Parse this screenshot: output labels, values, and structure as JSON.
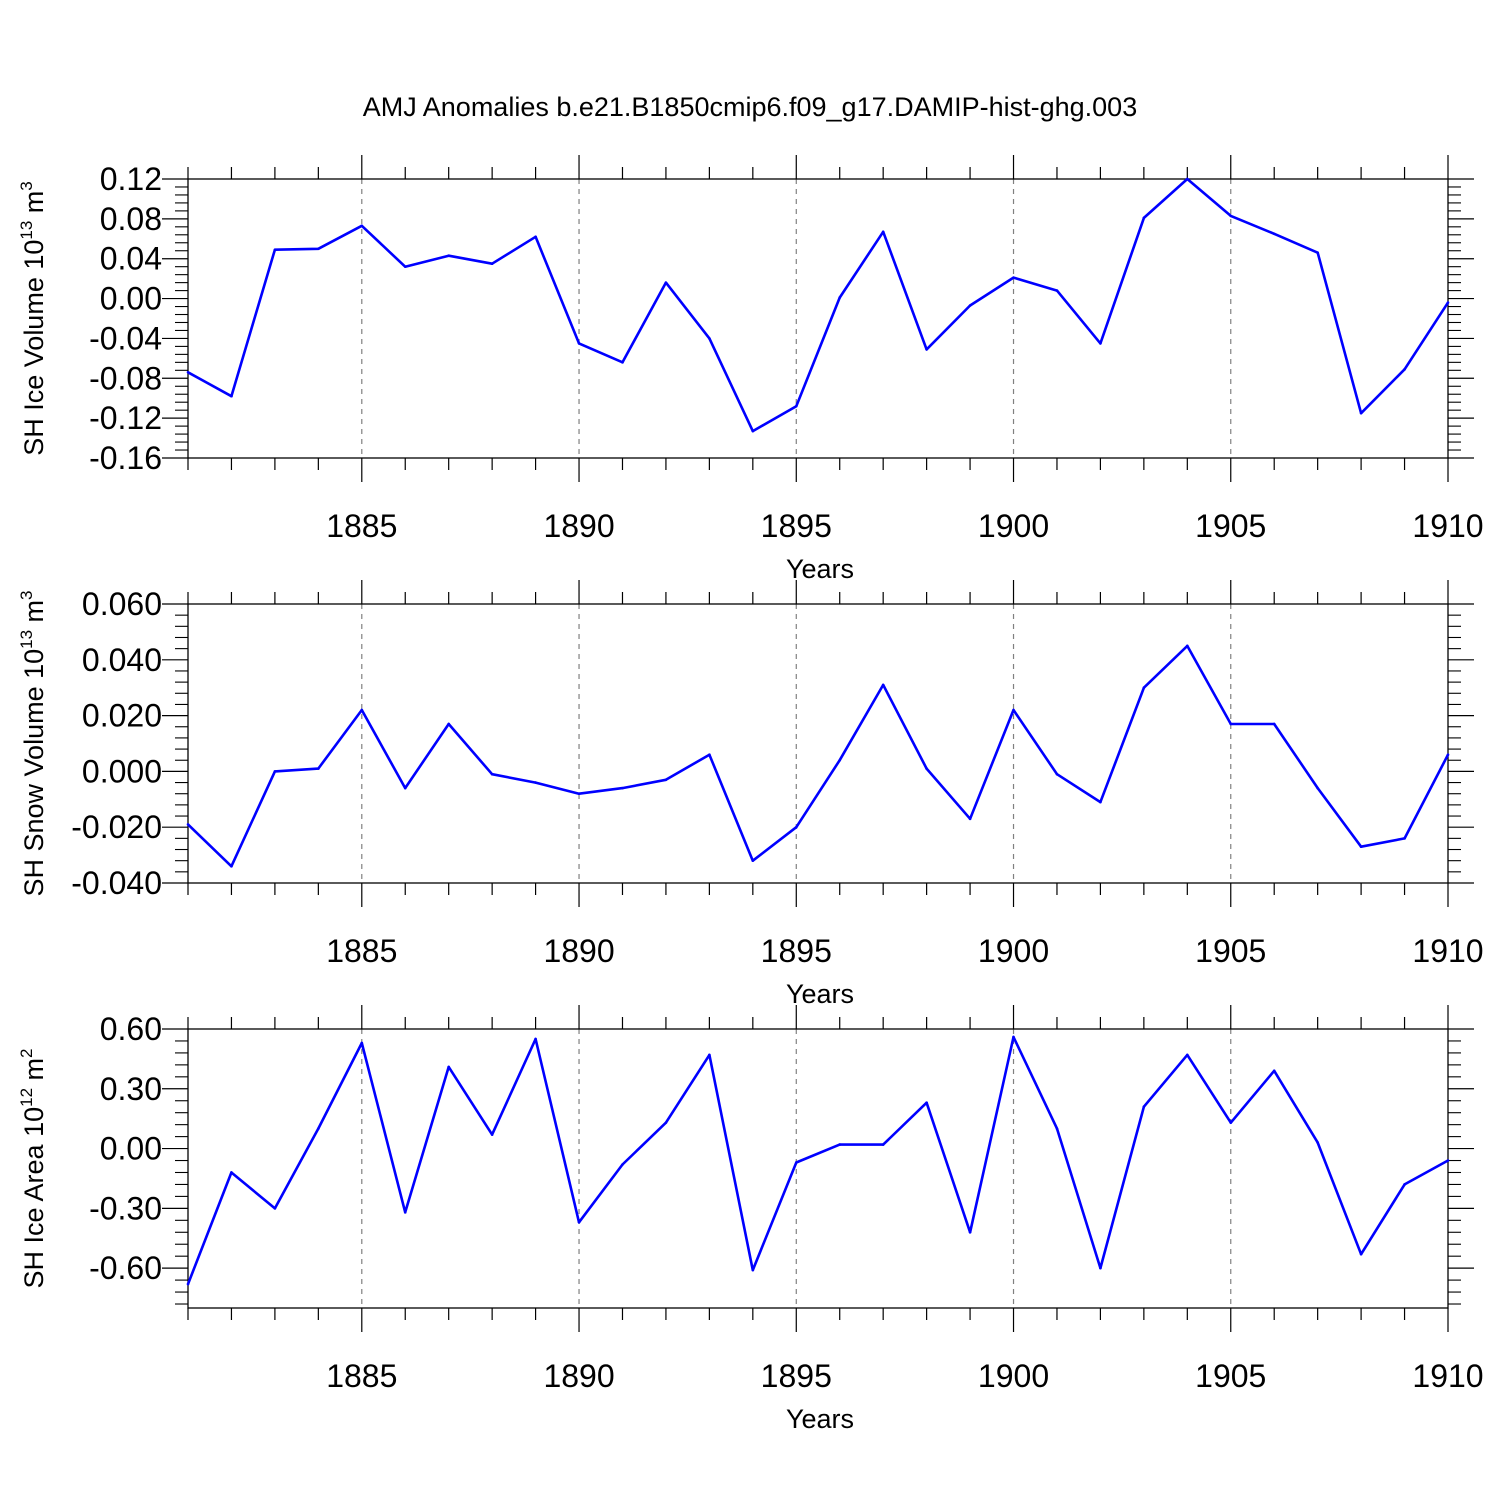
{
  "title": "AMJ Anomalies b.e21.B1850cmip6.f09_g17.DAMIP-hist-ghg.003",
  "colors": {
    "line": "#0000ff",
    "axis": "#000000",
    "grid": "#808080"
  },
  "chart_data": [
    {
      "type": "line",
      "ylabel_main": "SH Ice Volume 10",
      "ylabel_exp1": "13",
      "ylabel_mid": " m",
      "ylabel_exp2": "3",
      "xlabel": "Years",
      "xlim": [
        1881,
        1910
      ],
      "ylim": [
        -0.16,
        0.12
      ],
      "yticks": [
        -0.16,
        -0.12,
        -0.08,
        -0.04,
        0.0,
        0.04,
        0.08,
        0.12
      ],
      "ytick_labels": [
        "-0.16",
        "-0.12",
        "-0.08",
        "-0.04",
        "0.00",
        "0.04",
        "0.08",
        "0.12"
      ],
      "xticks": [
        1885,
        1890,
        1895,
        1900,
        1905,
        1910
      ],
      "xtick_labels": [
        "1885",
        "1890",
        "1895",
        "1900",
        "1905",
        "1910"
      ],
      "grid": "vertical dashed at major x ticks",
      "series": [
        {
          "x": [
            1881,
            1882,
            1883,
            1884,
            1885,
            1886,
            1887,
            1888,
            1889,
            1890,
            1891,
            1892,
            1893,
            1894,
            1895,
            1896,
            1897,
            1898,
            1899,
            1900,
            1901,
            1902,
            1903,
            1904,
            1905,
            1906,
            1907,
            1908,
            1909,
            1910
          ],
          "values": [
            -0.074,
            -0.098,
            0.049,
            0.05,
            0.073,
            0.032,
            0.043,
            0.035,
            0.062,
            -0.045,
            -0.064,
            0.016,
            -0.04,
            -0.133,
            -0.108,
            0.001,
            0.067,
            -0.051,
            -0.007,
            0.021,
            0.008,
            -0.045,
            0.081,
            0.12,
            0.083,
            0.065,
            0.046,
            -0.115,
            -0.071,
            -0.004
          ]
        }
      ]
    },
    {
      "type": "line",
      "ylabel_main": "SH Snow Volume 10",
      "ylabel_exp1": "13",
      "ylabel_mid": " m",
      "ylabel_exp2": "3",
      "xlabel": "Years",
      "xlim": [
        1881,
        1910
      ],
      "ylim": [
        -0.04,
        0.06
      ],
      "yticks": [
        -0.04,
        -0.02,
        0.0,
        0.02,
        0.04,
        0.06
      ],
      "ytick_labels": [
        "-0.040",
        "-0.020",
        "0.000",
        "0.020",
        "0.040",
        "0.060"
      ],
      "xticks": [
        1885,
        1890,
        1895,
        1900,
        1905,
        1910
      ],
      "xtick_labels": [
        "1885",
        "1890",
        "1895",
        "1900",
        "1905",
        "1910"
      ],
      "grid": "vertical dashed at major x ticks",
      "series": [
        {
          "x": [
            1881,
            1882,
            1883,
            1884,
            1885,
            1886,
            1887,
            1888,
            1889,
            1890,
            1891,
            1892,
            1893,
            1894,
            1895,
            1896,
            1897,
            1898,
            1899,
            1900,
            1901,
            1902,
            1903,
            1904,
            1905,
            1906,
            1907,
            1908,
            1909,
            1910
          ],
          "values": [
            -0.019,
            -0.034,
            0.0,
            0.001,
            0.022,
            -0.006,
            0.017,
            -0.001,
            -0.004,
            -0.008,
            -0.006,
            -0.003,
            0.006,
            -0.032,
            -0.02,
            0.004,
            0.031,
            0.001,
            -0.017,
            0.022,
            -0.001,
            -0.011,
            0.03,
            0.045,
            0.017,
            0.017,
            -0.006,
            -0.027,
            -0.024,
            0.006
          ]
        }
      ]
    },
    {
      "type": "line",
      "ylabel_main": "SH Ice Area 10",
      "ylabel_exp1": "12",
      "ylabel_mid": " m",
      "ylabel_exp2": "2",
      "xlabel": "Years",
      "xlim": [
        1881,
        1910
      ],
      "ylim": [
        -0.8,
        0.6
      ],
      "yticks": [
        -0.6,
        -0.3,
        0.0,
        0.3,
        0.6
      ],
      "ytick_labels": [
        "-0.60",
        "-0.30",
        "0.00",
        "0.30",
        "0.60"
      ],
      "xticks": [
        1885,
        1890,
        1895,
        1900,
        1905,
        1910
      ],
      "xtick_labels": [
        "1885",
        "1890",
        "1895",
        "1900",
        "1905",
        "1910"
      ],
      "grid": "vertical dashed at major x ticks",
      "series": [
        {
          "x": [
            1881,
            1882,
            1883,
            1884,
            1885,
            1886,
            1887,
            1888,
            1889,
            1890,
            1891,
            1892,
            1893,
            1894,
            1895,
            1896,
            1897,
            1898,
            1899,
            1900,
            1901,
            1902,
            1903,
            1904,
            1905,
            1906,
            1907,
            1908,
            1909,
            1910
          ],
          "values": [
            -0.68,
            -0.12,
            -0.3,
            0.1,
            0.53,
            -0.32,
            0.41,
            0.07,
            0.55,
            -0.37,
            -0.08,
            0.13,
            0.47,
            -0.61,
            -0.07,
            0.02,
            0.02,
            0.23,
            -0.42,
            0.56,
            0.1,
            -0.6,
            0.21,
            0.47,
            0.13,
            0.39,
            0.03,
            -0.53,
            -0.18,
            -0.06
          ]
        }
      ]
    }
  ]
}
